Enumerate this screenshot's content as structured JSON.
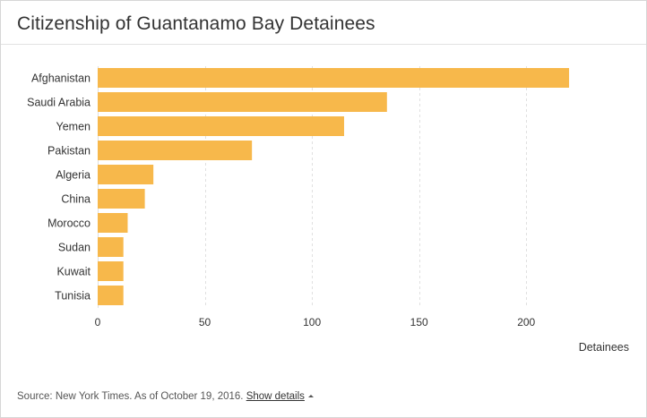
{
  "chart_data": {
    "type": "bar",
    "orientation": "horizontal",
    "title": "Citizenship of Guantanamo Bay Detainees",
    "xlabel": "Detainees",
    "ylabel": "",
    "categories": [
      "Afghanistan",
      "Saudi Arabia",
      "Yemen",
      "Pakistan",
      "Algeria",
      "China",
      "Morocco",
      "Sudan",
      "Kuwait",
      "Tunisia"
    ],
    "values": [
      220,
      135,
      115,
      72,
      26,
      22,
      14,
      12,
      12,
      12
    ],
    "xlim": [
      0,
      225
    ],
    "xticks": [
      0,
      50,
      100,
      150,
      200
    ],
    "grid": true,
    "bar_color": "#f7b84b"
  },
  "footer": {
    "source_text": "Source: New York Times. As of October 19, 2016.",
    "details_label": "Show details"
  },
  "colors": {
    "text": "#333333",
    "grid": "#e0e0e0",
    "axis": "#cccccc"
  }
}
